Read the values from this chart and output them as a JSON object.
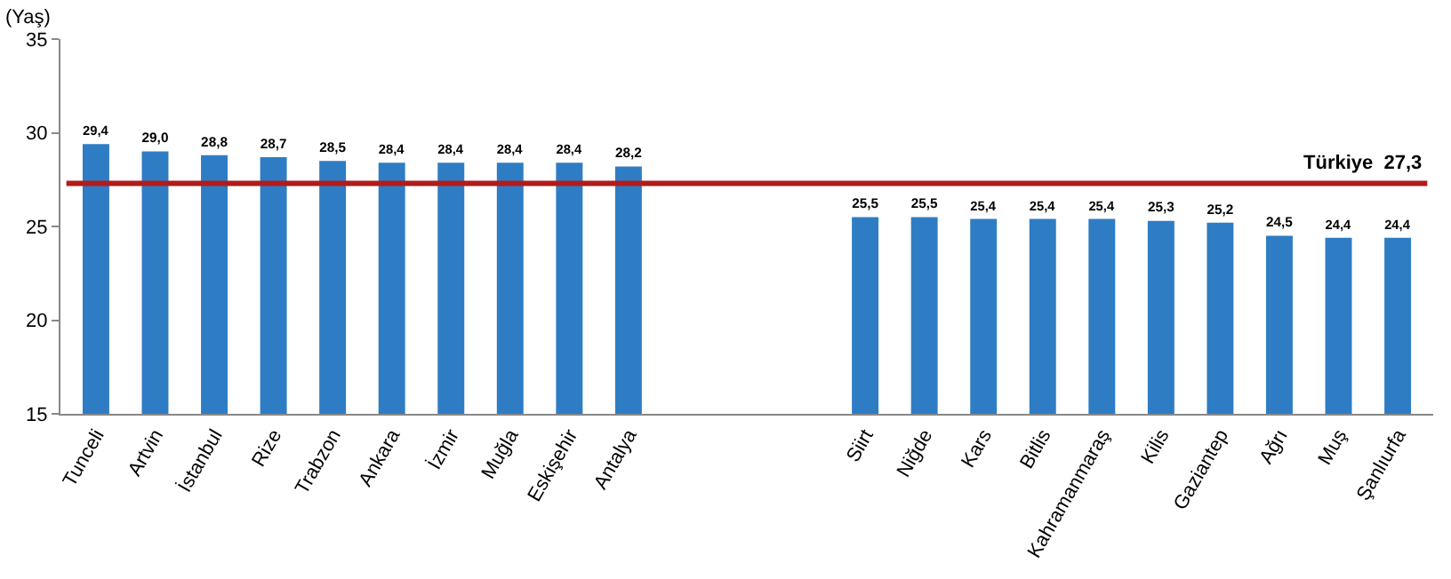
{
  "chart_data": {
    "type": "bar",
    "ylabel": "(Yaş)",
    "categories": [
      "Tunceli",
      "Artvin",
      "İstanbul",
      "Rize",
      "Trabzon",
      "Ankara",
      "İzmir",
      "Muğla",
      "Eskişehir",
      "Antalya",
      null,
      null,
      null,
      "Siirt",
      "Niğde",
      "Kars",
      "Bitlis",
      "Kahramanmaraş",
      "Kilis",
      "Gaziantep",
      "Ağrı",
      "Muş",
      "Şanlıurfa"
    ],
    "values": [
      29.4,
      29.0,
      28.8,
      28.7,
      28.5,
      28.4,
      28.4,
      28.4,
      28.4,
      28.2,
      null,
      null,
      null,
      25.5,
      25.5,
      25.4,
      25.4,
      25.4,
      25.3,
      25.2,
      24.5,
      24.4,
      24.4
    ],
    "value_labels": [
      "29,4",
      "29,0",
      "28,8",
      "28,7",
      "28,5",
      "28,4",
      "28,4",
      "28,4",
      "28,4",
      "28,2",
      null,
      null,
      null,
      "25,5",
      "25,5",
      "25,4",
      "25,4",
      "25,4",
      "25,3",
      "25,2",
      "24,5",
      "24,4",
      "24,4"
    ],
    "color": "#2e7dc4",
    "ylim": [
      15,
      35
    ],
    "yticks": [
      15,
      20,
      25,
      30,
      35
    ],
    "grid": false,
    "ref_lines": [
      {
        "axis": "y",
        "value": 27.3,
        "label": "Türkiye  27,3",
        "color": "#b01c1c"
      }
    ]
  }
}
